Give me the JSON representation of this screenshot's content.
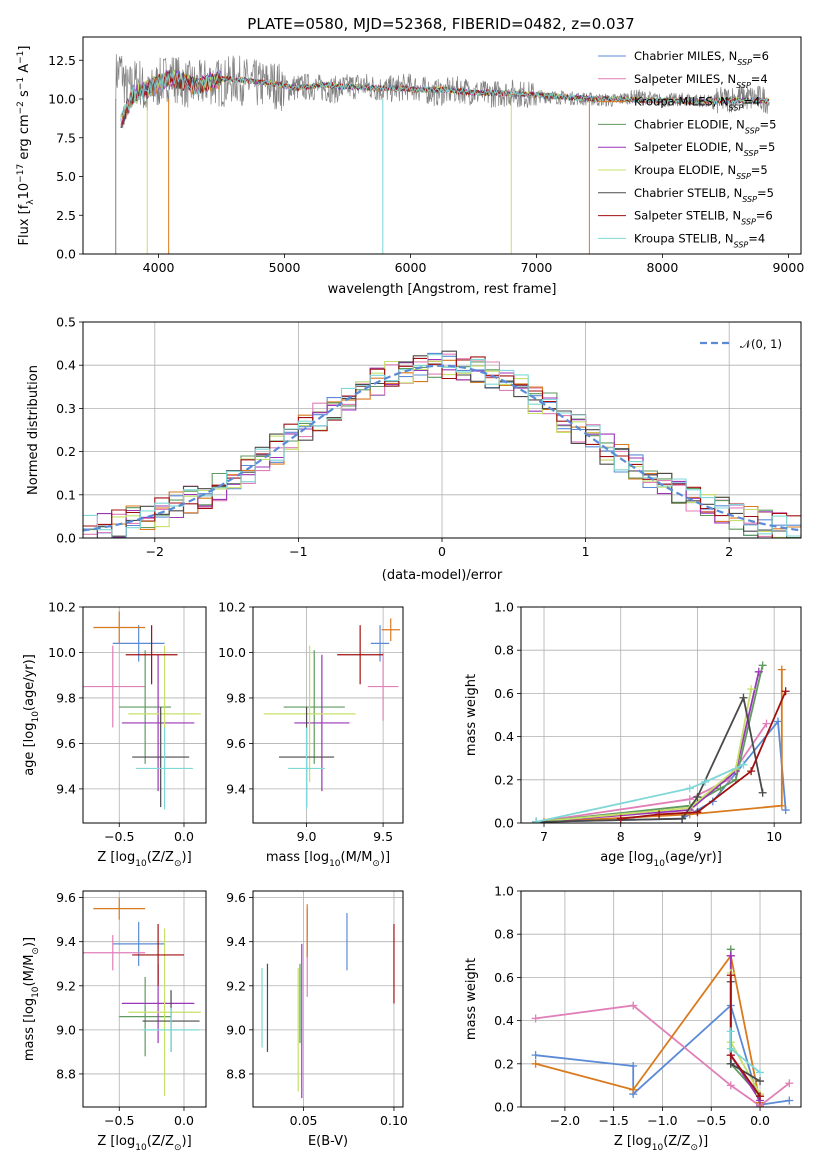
{
  "figure": {
    "title": "PLATE=0580, MJD=52368, FIBERID=0482, z=0.037"
  },
  "models": [
    {
      "name": "Chabrier MILES, N",
      "sub": "SSP",
      "n": "=6",
      "color": "#5b8bd6"
    },
    {
      "name": "Salpeter MILES, N",
      "sub": "SSP",
      "n": "=4",
      "color": "#e07fb8"
    },
    {
      "name": "Kroupa MILES, N",
      "sub": "SSP",
      "n": "=4",
      "color": "#d97a1f"
    },
    {
      "name": "Chabrier ELODIE, N",
      "sub": "SSP",
      "n": "=5",
      "color": "#5f9a5f"
    },
    {
      "name": "Salpeter ELODIE, N",
      "sub": "SSP",
      "n": "=5",
      "color": "#9b35b8"
    },
    {
      "name": "Kroupa ELODIE, N",
      "sub": "SSP",
      "n": "=5",
      "color": "#c6e06a"
    },
    {
      "name": "Chabrier STELIB, N",
      "sub": "SSP",
      "n": "=5",
      "color": "#4a4a4a"
    },
    {
      "name": "Salpeter STELIB, N",
      "sub": "SSP",
      "n": "=6",
      "color": "#a01010"
    },
    {
      "name": "Kroupa STELIB, N",
      "sub": "SSP",
      "n": "=4",
      "color": "#7fd7d7"
    }
  ],
  "chart_data": [
    {
      "id": "spectrum",
      "type": "line",
      "xlabel": "wavelength [Angstrom, rest frame]",
      "ylabel": "Flux [f",
      "ylabel_sub": "λ",
      "ylabel_tail": "10",
      "ylabel_sup": "−17",
      "ylabel_end": " erg cm",
      "ylabel_sup2": "−2",
      "ylabel_end2": " s",
      "ylabel_sup3": "−1",
      "ylabel_end3": " A",
      "ylabel_sup4": "−1",
      "ylabel_close": "]",
      "xlim": [
        3400,
        9100
      ],
      "ylim": [
        0,
        14
      ],
      "xticks": [
        4000,
        5000,
        6000,
        7000,
        8000,
        9000
      ],
      "yticks": [
        0.0,
        2.5,
        5.0,
        7.5,
        10.0,
        12.5
      ],
      "ytick_labels": [
        "0.0",
        "2.5",
        "5.0",
        "7.5",
        "10.0",
        "12.5"
      ],
      "data_x": [
        3660,
        3700,
        3750,
        3800,
        3850,
        3900,
        3950,
        4000,
        4050,
        4100,
        4200,
        4300,
        4400,
        4500,
        4600,
        4700,
        4800,
        4900,
        5000,
        5200,
        5400,
        5600,
        5800,
        6000,
        6200,
        6400,
        6600,
        6800,
        7000,
        7200,
        7400,
        7600,
        7800,
        8000,
        8200,
        8400,
        8600,
        8800,
        8850
      ],
      "data_y": [
        11.5,
        12.0,
        10.5,
        11.0,
        11.2,
        10.0,
        10.5,
        11.0,
        11.3,
        11.5,
        11.0,
        10.8,
        11.2,
        11.0,
        11.3,
        11.1,
        10.9,
        11.0,
        10.7,
        10.8,
        10.6,
        10.9,
        10.6,
        10.8,
        10.4,
        10.6,
        10.3,
        10.4,
        10.2,
        10.1,
        10.0,
        9.9,
        10.2,
        9.9,
        10.0,
        9.8,
        10.1,
        10.0,
        9.9
      ],
      "model_x": [
        3700,
        3800,
        3900,
        4000,
        4100,
        4300,
        4500,
        4700,
        4900,
        5100,
        5300,
        5500,
        5700,
        5900,
        6100,
        6300,
        6500,
        6700,
        6900,
        7100,
        7300,
        7500,
        7700,
        7900,
        8100,
        8300,
        8500,
        8700,
        8850
      ],
      "model_y": [
        8.5,
        10.3,
        10.6,
        11.0,
        11.4,
        10.8,
        11.3,
        11.2,
        11.0,
        10.7,
        10.9,
        10.8,
        10.7,
        10.7,
        10.6,
        10.6,
        10.4,
        10.4,
        10.3,
        10.2,
        10.1,
        10.0,
        10.0,
        9.9,
        9.9,
        9.8,
        9.9,
        9.9,
        9.9
      ]
    },
    {
      "id": "residuals",
      "type": "bar",
      "xlabel": "(data-model)/error",
      "ylabel": "Normed distribution",
      "xlim": [
        -2.5,
        2.5
      ],
      "ylim": [
        0,
        0.5
      ],
      "xticks": [
        -2,
        -1,
        0,
        1,
        2
      ],
      "xtick_labels": [
        "−2",
        "−1",
        "0",
        "1",
        "2"
      ],
      "yticks": [
        0.0,
        0.1,
        0.2,
        0.3,
        0.4,
        0.5
      ],
      "ytick_labels": [
        "0.0",
        "0.1",
        "0.2",
        "0.3",
        "0.4",
        "0.5"
      ],
      "legend": "𝒩(0, 1)",
      "bin_width": 0.1,
      "bin_start": -2.5
    },
    {
      "id": "age-vs-Z",
      "type": "scatter",
      "xlabel": "Z [log",
      "xlabel_sub": "10",
      "xlabel_tail": "(Z/Z",
      "xlabel_sub2": "⊙",
      "xlabel_close": ")]",
      "ylabel": "age  [log",
      "ylabel_sub": "10",
      "ylabel_tail": "(age/yr)]",
      "xlim": [
        -0.78,
        0.17
      ],
      "ylim": [
        9.25,
        10.2
      ],
      "xticks": [
        -0.5,
        0.0
      ],
      "xtick_labels": [
        "−0.5",
        "0.0"
      ],
      "yticks": [
        9.4,
        9.6,
        9.8,
        10.0,
        10.2
      ],
      "ytick_labels": [
        "9.4",
        "9.6",
        "9.8",
        "10.0",
        "10.2"
      ],
      "points": [
        {
          "x": -0.35,
          "xerr": 0.2,
          "y": 10.04,
          "yerr": 0.08
        },
        {
          "x": -0.55,
          "xerr": 0.25,
          "y": 9.85,
          "yerr": 0.18
        },
        {
          "x": -0.5,
          "xerr": 0.2,
          "y": 10.11,
          "yerr": 0.07
        },
        {
          "x": -0.3,
          "xerr": 0.2,
          "y": 9.76,
          "yerr": 0.25
        },
        {
          "x": -0.2,
          "xerr": 0.28,
          "y": 9.69,
          "yerr": 0.3
        },
        {
          "x": -0.15,
          "xerr": 0.28,
          "y": 9.73,
          "yerr": 0.3
        },
        {
          "x": -0.18,
          "xerr": 0.22,
          "y": 9.54,
          "yerr": 0.22
        },
        {
          "x": -0.25,
          "xerr": 0.2,
          "y": 9.99,
          "yerr": 0.13
        },
        {
          "x": -0.15,
          "xerr": 0.22,
          "y": 9.49,
          "yerr": 0.18
        }
      ]
    },
    {
      "id": "age-vs-mass",
      "type": "scatter",
      "xlabel": "mass [log",
      "xlabel_sub": "10",
      "xlabel_tail": "(M/M",
      "xlabel_sub2": "⊙",
      "xlabel_close": ")]",
      "xlim": [
        8.65,
        9.63
      ],
      "ylim": [
        9.25,
        10.2
      ],
      "xticks": [
        9.0,
        9.5
      ],
      "xtick_labels": [
        "9.0",
        "9.5"
      ],
      "yticks": [
        9.4,
        9.6,
        9.8,
        10.0,
        10.2
      ],
      "ytick_labels": [
        "9.4",
        "9.6",
        "9.8",
        "10.0",
        "10.2"
      ],
      "points": [
        {
          "x": 9.48,
          "xerr": 0.06,
          "y": 10.04,
          "yerr": 0.08
        },
        {
          "x": 9.5,
          "xerr": 0.1,
          "y": 9.85,
          "yerr": 0.15
        },
        {
          "x": 9.55,
          "xerr": 0.06,
          "y": 10.1,
          "yerr": 0.05
        },
        {
          "x": 9.05,
          "xerr": 0.2,
          "y": 9.76,
          "yerr": 0.25
        },
        {
          "x": 9.1,
          "xerr": 0.18,
          "y": 9.69,
          "yerr": 0.3
        },
        {
          "x": 9.02,
          "xerr": 0.3,
          "y": 9.73,
          "yerr": 0.3
        },
        {
          "x": 9.0,
          "xerr": 0.18,
          "y": 9.54,
          "yerr": 0.22
        },
        {
          "x": 9.35,
          "xerr": 0.15,
          "y": 9.99,
          "yerr": 0.13
        },
        {
          "x": 9.0,
          "xerr": 0.12,
          "y": 9.49,
          "yerr": 0.18
        }
      ]
    },
    {
      "id": "weight-vs-age",
      "type": "line",
      "xlabel": "age  [log",
      "xlabel_sub": "10",
      "xlabel_tail": "(age/yr)]",
      "ylabel": "mass weight",
      "xlim": [
        6.7,
        10.35
      ],
      "ylim": [
        0,
        1
      ],
      "xticks": [
        7,
        8,
        9,
        10
      ],
      "xtick_labels": [
        "7",
        "8",
        "9",
        "10"
      ],
      "yticks": [
        0.0,
        0.2,
        0.4,
        0.6,
        0.8,
        1.0
      ],
      "ytick_labels": [
        "0.0",
        "0.2",
        "0.4",
        "0.6",
        "0.8",
        "1.0"
      ],
      "series": [
        {
          "x": [
            6.9,
            8.8,
            9.2,
            10.05,
            10.15
          ],
          "y": [
            0.005,
            0.02,
            0.1,
            0.47,
            0.06
          ]
        },
        {
          "x": [
            6.9,
            8.9,
            9.4,
            9.9
          ],
          "y": [
            0.005,
            0.11,
            0.2,
            0.46
          ]
        },
        {
          "x": [
            7.0,
            8.9,
            10.1,
            10.1
          ],
          "y": [
            0.005,
            0.04,
            0.08,
            0.71
          ]
        },
        {
          "x": [
            6.9,
            8.9,
            9.3,
            9.5,
            9.85
          ],
          "y": [
            0.005,
            0.08,
            0.16,
            0.2,
            0.73
          ]
        },
        {
          "x": [
            6.9,
            8.9,
            9.5,
            9.8
          ],
          "y": [
            0.005,
            0.06,
            0.24,
            0.7
          ]
        },
        {
          "x": [
            6.9,
            8.9,
            9.5,
            9.7
          ],
          "y": [
            0.005,
            0.07,
            0.25,
            0.62
          ]
        },
        {
          "x": [
            6.9,
            8.8,
            9.0,
            9.6,
            9.85
          ],
          "y": [
            0.005,
            0.02,
            0.12,
            0.58,
            0.14
          ]
        },
        {
          "x": [
            8.0,
            8.5,
            9.0,
            9.7,
            10.15
          ],
          "y": [
            0.02,
            0.04,
            0.05,
            0.24,
            0.61
          ]
        },
        {
          "x": [
            6.9,
            8.9,
            9.1,
            9.6
          ],
          "y": [
            0.005,
            0.16,
            0.19,
            0.27
          ]
        }
      ]
    },
    {
      "id": "mass-vs-Z",
      "type": "scatter",
      "xlabel": "Z [log",
      "xlabel_sub": "10",
      "xlabel_tail": "(Z/Z",
      "xlabel_sub2": "⊙",
      "xlabel_close": ")]",
      "ylabel": "mass [log",
      "ylabel_sub": "10",
      "ylabel_tail": "(M/M",
      "ylabel_sub2": "⊙",
      "ylabel_close": ")]",
      "xlim": [
        -0.78,
        0.17
      ],
      "ylim": [
        8.65,
        9.63
      ],
      "xticks": [
        -0.5,
        0.0
      ],
      "xtick_labels": [
        "−0.5",
        "0.0"
      ],
      "yticks": [
        8.8,
        9.0,
        9.2,
        9.4,
        9.6
      ],
      "ytick_labels": [
        "8.8",
        "9.0",
        "9.2",
        "9.4",
        "9.6"
      ],
      "points": [
        {
          "x": -0.35,
          "xerr": 0.2,
          "y": 9.39,
          "yerr": 0.1
        },
        {
          "x": -0.55,
          "xerr": 0.25,
          "y": 9.35,
          "yerr": 0.08
        },
        {
          "x": -0.5,
          "xerr": 0.2,
          "y": 9.55,
          "yerr": 0.05
        },
        {
          "x": -0.3,
          "xerr": 0.2,
          "y": 9.06,
          "yerr": 0.18
        },
        {
          "x": -0.2,
          "xerr": 0.28,
          "y": 9.12,
          "yerr": 0.18
        },
        {
          "x": -0.15,
          "xerr": 0.28,
          "y": 9.08,
          "yerr": 0.38
        },
        {
          "x": -0.1,
          "xerr": 0.22,
          "y": 9.04,
          "yerr": 0.14
        },
        {
          "x": -0.2,
          "xerr": 0.2,
          "y": 9.34,
          "yerr": 0.14
        },
        {
          "x": -0.1,
          "xerr": 0.22,
          "y": 9.0,
          "yerr": 0.1
        }
      ]
    },
    {
      "id": "mass-vs-ebv",
      "type": "scatter",
      "xlabel": "E(B-V)",
      "xlim": [
        0.022,
        0.105
      ],
      "ylim": [
        8.65,
        9.63
      ],
      "xticks": [
        0.05,
        0.1
      ],
      "xtick_labels": [
        "0.05",
        "0.10"
      ],
      "yticks": [
        8.8,
        9.0,
        9.2,
        9.4,
        9.6
      ],
      "ytick_labels": [
        "8.8",
        "9.0",
        "9.2",
        "9.4",
        "9.6"
      ],
      "points": [
        {
          "x": 0.074,
          "y": 9.4,
          "yerr": 0.13
        },
        {
          "x": 0.052,
          "y": 9.35,
          "yerr": 0.2
        },
        {
          "x": 0.052,
          "y": 9.45,
          "yerr": 0.12
        },
        {
          "x": 0.048,
          "y": 9.12,
          "yerr": 0.18
        },
        {
          "x": 0.049,
          "y": 9.04,
          "yerr": 0.35
        },
        {
          "x": 0.047,
          "y": 9.0,
          "yerr": 0.28
        },
        {
          "x": 0.03,
          "y": 9.1,
          "yerr": 0.2
        },
        {
          "x": 0.1,
          "y": 9.3,
          "yerr": 0.18
        },
        {
          "x": 0.027,
          "y": 9.1,
          "yerr": 0.18
        }
      ]
    },
    {
      "id": "weight-vs-Z",
      "type": "line",
      "xlabel": "Z [log",
      "xlabel_sub": "10",
      "xlabel_tail": "(Z/Z",
      "xlabel_sub2": "⊙",
      "xlabel_close": ")]",
      "ylabel": "mass weight",
      "xlim": [
        -2.45,
        0.42
      ],
      "ylim": [
        0,
        1
      ],
      "xticks": [
        -2.0,
        -1.5,
        -1.0,
        -0.5,
        0.0
      ],
      "xtick_labels": [
        "−2.0",
        "−1.5",
        "−1.0",
        "−0.5",
        "0.0"
      ],
      "yticks": [
        0.0,
        0.2,
        0.4,
        0.6,
        0.8,
        1.0
      ],
      "ytick_labels": [
        "0.0",
        "0.2",
        "0.4",
        "0.6",
        "0.8",
        "1.0"
      ],
      "series": [
        {
          "x": [
            -2.3,
            -1.3,
            -1.3,
            -0.3,
            0.0,
            0.3
          ],
          "y": [
            0.24,
            0.19,
            0.06,
            0.47,
            0.01,
            0.03
          ]
        },
        {
          "x": [
            -2.3,
            -1.3,
            -0.3,
            0.0,
            0.3
          ],
          "y": [
            0.41,
            0.47,
            0.1,
            0.005,
            0.11
          ]
        },
        {
          "x": [
            -2.3,
            -1.3,
            -0.3,
            0.0
          ],
          "y": [
            0.2,
            0.08,
            0.7,
            0.02
          ]
        },
        {
          "x": [
            -0.3,
            -0.3,
            0.0
          ],
          "y": [
            0.73,
            0.2,
            0.05
          ]
        },
        {
          "x": [
            -0.3,
            -0.3,
            0.0
          ],
          "y": [
            0.7,
            0.24,
            0.03
          ]
        },
        {
          "x": [
            -0.3,
            -0.3,
            0.0
          ],
          "y": [
            0.62,
            0.3,
            0.06
          ]
        },
        {
          "x": [
            -0.3,
            -0.3,
            0.0
          ],
          "y": [
            0.58,
            0.2,
            0.12
          ]
        },
        {
          "x": [
            -0.3,
            -0.3,
            0.0
          ],
          "y": [
            0.61,
            0.24,
            0.05
          ]
        },
        {
          "x": [
            -0.3,
            -0.3,
            0.0
          ],
          "y": [
            0.35,
            0.27,
            0.16
          ]
        }
      ]
    }
  ]
}
